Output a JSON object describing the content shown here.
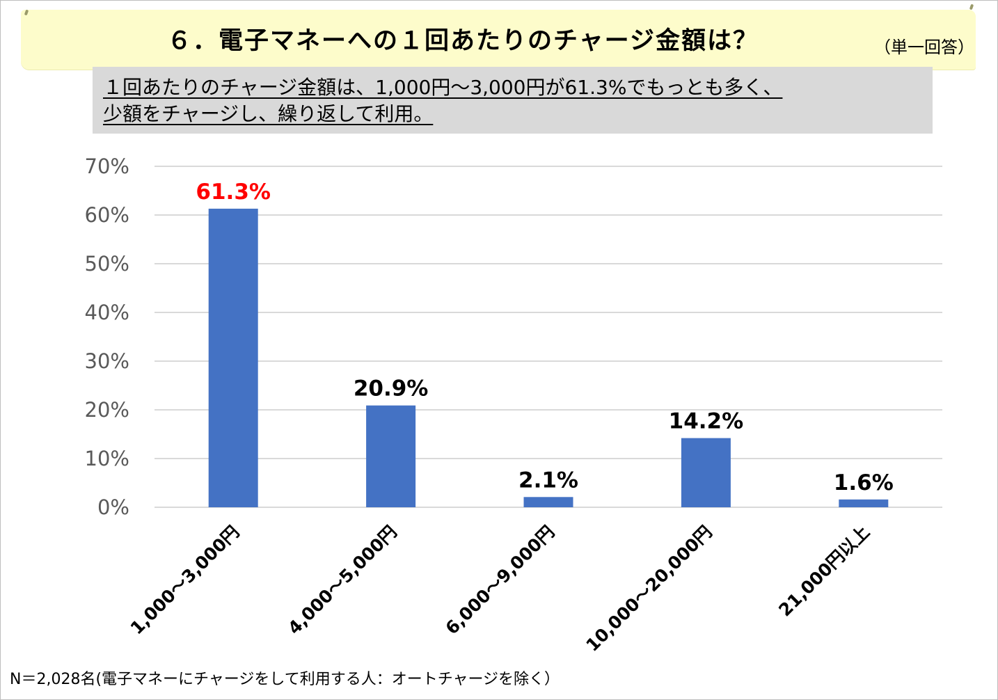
{
  "title": {
    "main": "６．電子マネーへの１回あたりのチャージ金額は？",
    "note": "（単一回答）"
  },
  "summary": {
    "line1": "１回あたりのチャージ金額は、1,000円～3,000円が61.3%でもっとも多く、",
    "line2": "少額をチャージし、繰り返して利用。"
  },
  "footnote": "N＝2,028名(電子マネーにチャージをして利用する人：オートチャージを除く）",
  "colors": {
    "bar": "#4472c4",
    "highlight_label": "#ff0000",
    "label": "#000000",
    "grid": "#d9d9d9",
    "axis_text": "#595959",
    "banner": "#fdfccb",
    "summary_bg": "#d9d9d9"
  },
  "chart_data": {
    "type": "bar",
    "categories": [
      "1,000～3,000円",
      "4,000～5,000円",
      "6,000～9,000円",
      "10,000～20,000円",
      "21,000円以上"
    ],
    "values": [
      61.3,
      20.9,
      2.1,
      14.2,
      1.6
    ],
    "data_labels": [
      "61.3%",
      "20.9%",
      "2.1%",
      "14.2%",
      "1.6%"
    ],
    "highlight_index": 0,
    "yticks": [
      "0%",
      "10%",
      "20%",
      "30%",
      "40%",
      "50%",
      "60%",
      "70%"
    ],
    "ylim": [
      0,
      70
    ],
    "grid": true,
    "legend": "none"
  }
}
